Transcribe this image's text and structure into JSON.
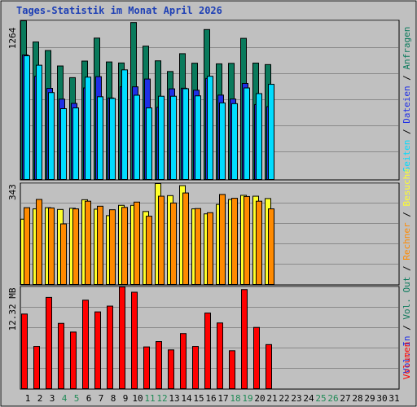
{
  "chart_data": {
    "type": "bar",
    "title": "Tages-Statistik im Monat April 2026",
    "x": [
      "1",
      "2",
      "3",
      "4",
      "5",
      "6",
      "7",
      "8",
      "9",
      "10",
      "11",
      "12",
      "13",
      "14",
      "15",
      "16",
      "17",
      "18",
      "19",
      "20",
      "21",
      "22",
      "23",
      "24",
      "25",
      "26",
      "27",
      "28",
      "29",
      "30",
      "31"
    ],
    "weekend_days": [
      "4",
      "5",
      "11",
      "12",
      "18",
      "19",
      "25",
      "26"
    ],
    "panels": [
      {
        "name": "top",
        "ymax": 1264,
        "ymax_label": "1264",
        "side_labels": [
          "Anfragen",
          "Dateien",
          "Seiten"
        ],
        "series": [
          {
            "name": "Anfragen",
            "values": [
              1264,
              1095,
              1027,
              904,
              811,
              943,
              1126,
              936,
              928,
              1250,
              1062,
              945,
              860,
              1002,
              926,
              1194,
              921,
              925,
              1124,
              927,
              915
            ]
          },
          {
            "name": "Dateien",
            "values": [
              992,
              822,
              726,
              640,
              606,
              729,
              819,
              649,
              738,
              738,
              800,
              575,
              722,
              727,
              711,
              805,
              672,
              641,
              765,
              597,
              580
            ]
          },
          {
            "name": "Seiten",
            "values": [
              985,
              910,
              692,
              564,
              570,
              815,
              659,
              646,
              873,
              671,
              570,
              663,
              663,
              723,
              666,
              822,
              610,
              604,
              729,
              684,
              758
            ]
          }
        ]
      },
      {
        "name": "middle",
        "ymax": 343,
        "ymax_label": "343",
        "side_labels": [
          "Besuche",
          "Rechner",
          "Vol. Out",
          "Vol. In"
        ],
        "series": [
          {
            "name": "Besuche",
            "values": [
              222,
              257,
              261,
              255,
              259,
              288,
              256,
              234,
              269,
              269,
              248,
              343,
              302,
              336,
              257,
              240,
              272,
              289,
              303,
              300,
              292
            ]
          },
          {
            "name": "Rechner",
            "values": [
              261,
              289,
              260,
              206,
              257,
              283,
              266,
              254,
              262,
              280,
              232,
              300,
              277,
              311,
              258,
              244,
              306,
              293,
              299,
              283,
              257
            ]
          }
        ]
      },
      {
        "name": "bottom",
        "ymax": 12.32,
        "ymax_label": "12.32 MB",
        "side_labels": [
          "Volumen"
        ],
        "series": [
          {
            "name": "Volumen",
            "values": [
              9.04,
              5.12,
              11.05,
              7.91,
              6.86,
              10.72,
              9.3,
              10.0,
              12.32,
              11.68,
              5.06,
              5.71,
              4.7,
              6.68,
              5.12,
              9.16,
              7.96,
              4.6,
              12.0,
              7.42,
              5.34
            ]
          }
        ]
      }
    ],
    "colors": {
      "anfragen": "#0a7a5c",
      "dateien": "#1f2fe6",
      "seiten": "#00dcff",
      "besuche": "#ffff2a",
      "rechner": "#ff8a00",
      "volumen": "#ff0000",
      "weekend_label": "#1f8a55",
      "title": "#1d3fb5",
      "panel_bg": "#c0c0c0"
    }
  }
}
